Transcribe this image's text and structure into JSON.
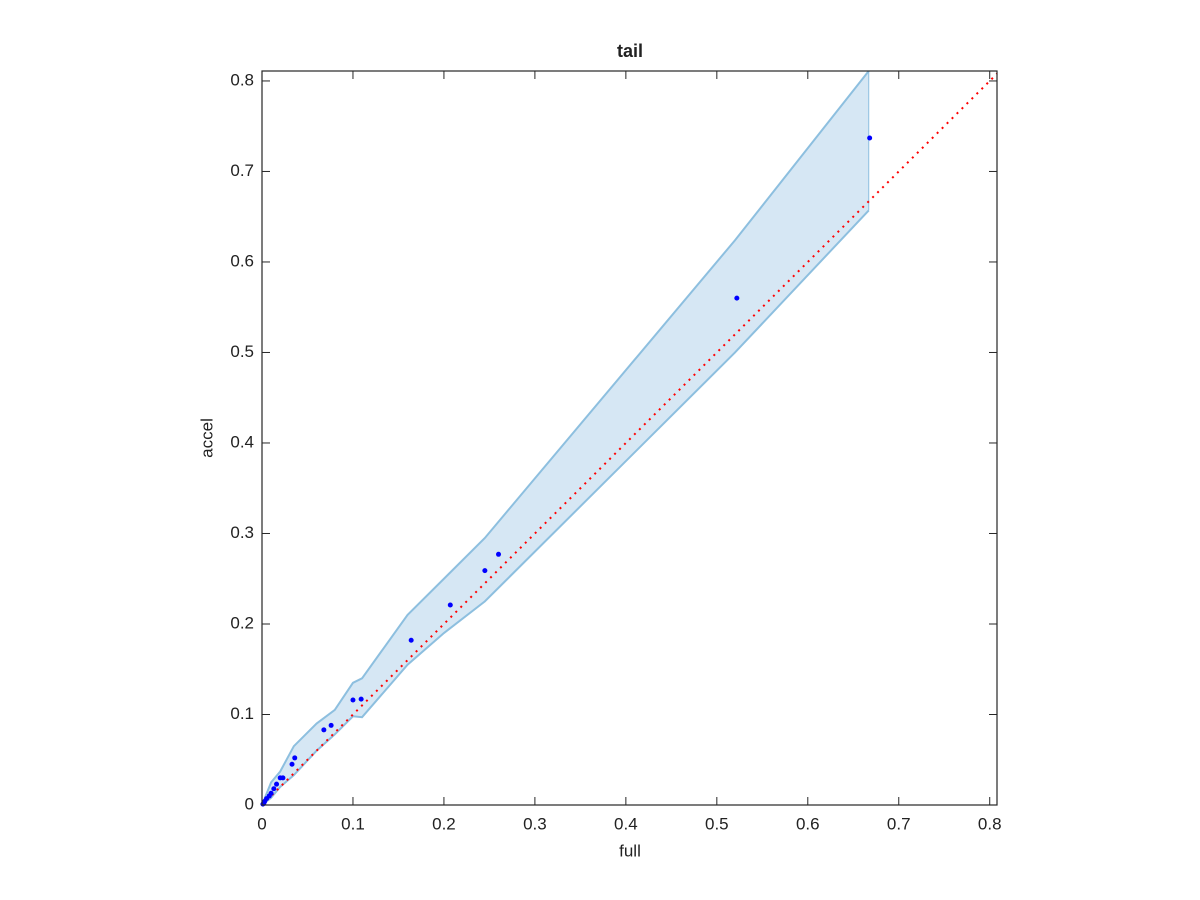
{
  "chart_data": {
    "type": "scatter",
    "title": "tail",
    "xlabel": "full",
    "ylabel": "accel",
    "xlim": [
      0,
      0.808
    ],
    "ylim": [
      0,
      0.811
    ],
    "xticks": [
      0,
      0.1,
      0.2,
      0.3,
      0.4,
      0.5,
      0.6,
      0.7,
      0.8
    ],
    "yticks": [
      0,
      0.1,
      0.2,
      0.3,
      0.4,
      0.5,
      0.6,
      0.7,
      0.8
    ],
    "grid": false,
    "band": {
      "fill": "#d6e7f4",
      "edge": "#8dbfdf",
      "x": [
        0,
        0.01,
        0.02,
        0.035,
        0.06,
        0.08,
        0.1,
        0.11,
        0.16,
        0.2,
        0.245,
        0.27,
        0.52,
        0.667
      ],
      "upper": [
        0,
        0.025,
        0.037,
        0.065,
        0.09,
        0.105,
        0.135,
        0.14,
        0.21,
        0.25,
        0.295,
        0.325,
        0.624,
        0.811
      ],
      "lower": [
        0,
        0.008,
        0.02,
        0.033,
        0.06,
        0.078,
        0.098,
        0.097,
        0.155,
        0.19,
        0.225,
        0.25,
        0.5,
        0.657
      ]
    },
    "reference_line": {
      "color": "#ff0000",
      "x": [
        0,
        0.808
      ],
      "y": [
        0,
        0.808
      ]
    },
    "series": [
      {
        "color": "#0000ff",
        "x": [
          0.668,
          0.522,
          0.26,
          0.245,
          0.207,
          0.164,
          0.109,
          0.1,
          0.076,
          0.068,
          0.036,
          0.033,
          0.023,
          0.02,
          0.016,
          0.013,
          0.01,
          0.008,
          0.005,
          0.003,
          0.002,
          0.001
        ],
        "values": [
          0.737,
          0.56,
          0.277,
          0.259,
          0.221,
          0.182,
          0.117,
          0.116,
          0.088,
          0.083,
          0.052,
          0.045,
          0.03,
          0.03,
          0.023,
          0.018,
          0.013,
          0.01,
          0.007,
          0.004,
          0.002,
          0.001
        ]
      }
    ]
  }
}
